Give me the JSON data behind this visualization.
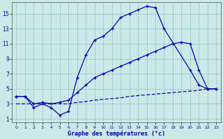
{
  "xlabel": "Graphe des températures (°c)",
  "bg_color": "#cce8e8",
  "line_color": "#0000bb",
  "grid_color": "#99cccc",
  "xlim": [
    -0.5,
    23.5
  ],
  "ylim": [
    0.5,
    16.5
  ],
  "xticks": [
    0,
    1,
    2,
    3,
    4,
    5,
    6,
    7,
    8,
    9,
    10,
    11,
    12,
    13,
    14,
    15,
    16,
    17,
    18,
    19,
    20,
    21,
    22,
    23
  ],
  "yticks": [
    1,
    3,
    5,
    7,
    9,
    11,
    13,
    15
  ],
  "series1_x": [
    0,
    1,
    2,
    3,
    4,
    5,
    6,
    7,
    8,
    9,
    10,
    11,
    12,
    13,
    14,
    15,
    16,
    17,
    20,
    21,
    22,
    23
  ],
  "series1_y": [
    4,
    4,
    2.5,
    3,
    2.5,
    1.5,
    2,
    6.5,
    9.5,
    11.5,
    12,
    13,
    14.5,
    15,
    15.5,
    16,
    15.8,
    13,
    7.5,
    5.5,
    5,
    5
  ],
  "series2_x": [
    0,
    1,
    2,
    3,
    4,
    5,
    6,
    7,
    8,
    9,
    10,
    11,
    12,
    13,
    14,
    15,
    16,
    17,
    18,
    19,
    20,
    21,
    22,
    23
  ],
  "series2_y": [
    4,
    4,
    3,
    3.2,
    3,
    3.2,
    3.5,
    4.5,
    5.5,
    6.5,
    7,
    7.5,
    8,
    8.5,
    9,
    9.5,
    10,
    10.5,
    11,
    11.2,
    11,
    7.5,
    5,
    5
  ],
  "series3_x": [
    0,
    1,
    2,
    3,
    4,
    5,
    6,
    7,
    8,
    9,
    10,
    11,
    12,
    13,
    14,
    15,
    16,
    17,
    18,
    19,
    20,
    21,
    22,
    23
  ],
  "series3_y": [
    3,
    3,
    3,
    3,
    3,
    3,
    3,
    3.2,
    3.3,
    3.5,
    3.6,
    3.7,
    3.8,
    4,
    4.1,
    4.2,
    4.3,
    4.4,
    4.5,
    4.6,
    4.7,
    4.8,
    5,
    5
  ]
}
